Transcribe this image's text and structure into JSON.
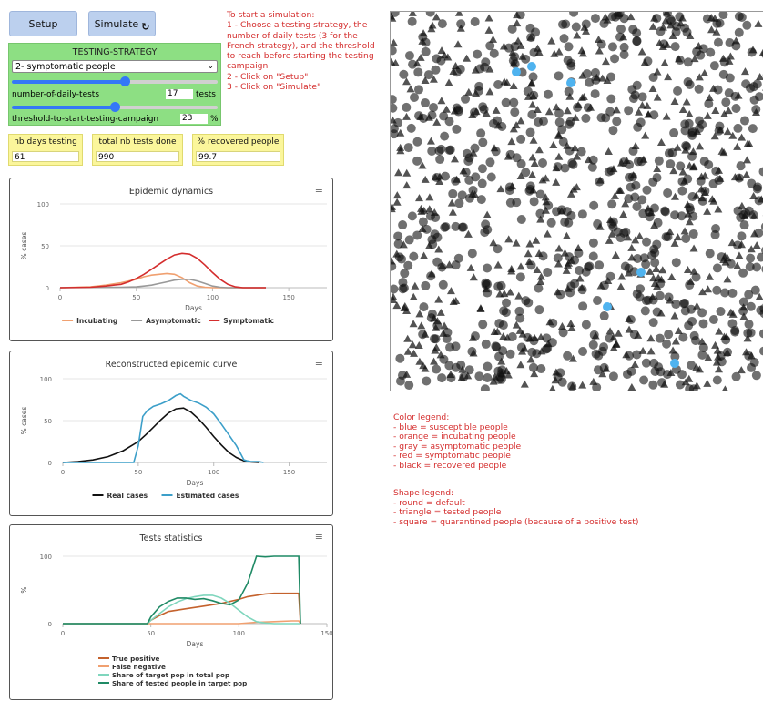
{
  "buttons": {
    "setup": "Setup",
    "simulate": "Simulate"
  },
  "testing": {
    "header": "TESTING-STRATEGY",
    "selected": "2- symptomatic people",
    "daily_tests_label": "number-of-daily-tests",
    "daily_tests_value": "17",
    "daily_tests_unit": "tests",
    "daily_tests_level": 0.55,
    "threshold_label": "threshold-to-start-testing-campaign",
    "threshold_value": "23",
    "threshold_unit": "%",
    "threshold_level": 0.5
  },
  "monitors": [
    {
      "label": "nb days testing",
      "value": "61"
    },
    {
      "label": "total nb tests done",
      "value": "990"
    },
    {
      "label": "% recovered people",
      "value": "99.7"
    }
  ],
  "instructions": "To start a simulation:\n1 - Choose a testing strategy, the number of daily tests (3 for the French strategy), and the threshold to reach before starting the testing campaign\n2 - Click on \"Setup\"\n3 - Click on \"Simulate\"",
  "color_legend": "Color legend:\n- blue = susceptible people\n- orange = incubating people\n- gray = asymptomatic people\n- red = symptomatic people\n- black = recovered people",
  "shape_legend": "Shape legend:\n- round = default\n- triangle = tested people\n- square = quarantined people (because of a positive test)",
  "colors": {
    "red": "#d42d2d",
    "green": "#8ddf83",
    "yellow": "#fbf69b",
    "button": "#bcd0ee"
  },
  "icons": {
    "simulate": "refresh-icon",
    "chart_menu": "hamburger-icon"
  },
  "chart_data": [
    {
      "type": "line",
      "title": "Epidemic dynamics",
      "xlabel": "Days",
      "ylabel": "% cases",
      "xlim": [
        0,
        175
      ],
      "ylim": [
        0,
        100
      ],
      "xticks": [
        0,
        50,
        100,
        150
      ],
      "yticks": [
        0,
        50,
        100
      ],
      "legend_position": "bottom",
      "series": [
        {
          "name": "Incubating",
          "color": "#f0a070",
          "x": [
            0,
            20,
            30,
            40,
            50,
            55,
            60,
            65,
            70,
            75,
            80,
            85,
            90,
            95,
            100,
            135
          ],
          "y": [
            0,
            1,
            3,
            6,
            10,
            13,
            15,
            16,
            17,
            16,
            12,
            6,
            2,
            0.5,
            0,
            0
          ]
        },
        {
          "name": "Asymptomatic",
          "color": "#999999",
          "x": [
            0,
            40,
            50,
            55,
            60,
            65,
            70,
            75,
            80,
            85,
            90,
            95,
            100,
            105,
            110,
            135
          ],
          "y": [
            0,
            0.5,
            1,
            2,
            3,
            5,
            7,
            9,
            10,
            10,
            8,
            5,
            2,
            0.5,
            0,
            0
          ]
        },
        {
          "name": "Symptomatic",
          "color": "#d42d2d",
          "x": [
            0,
            20,
            30,
            40,
            45,
            50,
            55,
            60,
            65,
            70,
            75,
            80,
            85,
            90,
            95,
            100,
            105,
            110,
            115,
            120,
            135
          ],
          "y": [
            0,
            0.5,
            2,
            4,
            7,
            11,
            16,
            22,
            28,
            34,
            39,
            41,
            40,
            35,
            27,
            18,
            10,
            4,
            1,
            0,
            0
          ]
        }
      ]
    },
    {
      "type": "line",
      "title": "Reconstructed epidemic curve",
      "xlabel": "Days",
      "ylabel": "% cases",
      "xlim": [
        0,
        175
      ],
      "ylim": [
        0,
        100
      ],
      "xticks": [
        0,
        50,
        100,
        150
      ],
      "yticks": [
        0,
        50,
        100
      ],
      "legend_position": "bottom",
      "series": [
        {
          "name": "Real cases",
          "color": "#111111",
          "x": [
            0,
            10,
            20,
            30,
            40,
            50,
            55,
            60,
            65,
            70,
            75,
            80,
            85,
            90,
            95,
            100,
            105,
            110,
            115,
            120,
            125,
            130
          ],
          "y": [
            0,
            1,
            3,
            7,
            14,
            25,
            33,
            42,
            51,
            59,
            64,
            65,
            60,
            52,
            42,
            31,
            21,
            12,
            6,
            2,
            0.5,
            0
          ]
        },
        {
          "name": "Estimated cases",
          "color": "#3c9fc9",
          "x": [
            0,
            47,
            50,
            53,
            56,
            60,
            65,
            70,
            75,
            78,
            80,
            85,
            90,
            95,
            100,
            105,
            110,
            115,
            118,
            120,
            122,
            125,
            130,
            133
          ],
          "y": [
            0,
            0,
            20,
            55,
            62,
            67,
            70,
            74,
            80,
            82,
            79,
            74,
            71,
            66,
            58,
            46,
            33,
            20,
            10,
            3,
            2,
            1,
            1,
            0
          ]
        }
      ]
    },
    {
      "type": "line",
      "title": "Tests statistics",
      "xlabel": "Days",
      "ylabel": "%",
      "xlim": [
        0,
        150
      ],
      "ylim": [
        0,
        100
      ],
      "xticks": [
        0,
        50,
        100,
        150
      ],
      "yticks": [
        0,
        100
      ],
      "legend_position": "bottom",
      "series": [
        {
          "name": "True positive",
          "color": "#c4622d",
          "x": [
            0,
            48,
            50,
            55,
            60,
            70,
            80,
            90,
            100,
            105,
            110,
            115,
            120,
            130,
            134,
            135
          ],
          "y": [
            0,
            0,
            5,
            12,
            18,
            22,
            26,
            30,
            36,
            40,
            42,
            44,
            45,
            45,
            45,
            0
          ]
        },
        {
          "name": "False negative",
          "color": "#f0a070",
          "x": [
            0,
            100,
            110,
            120,
            130,
            134,
            135
          ],
          "y": [
            0,
            0,
            2,
            3,
            4,
            4,
            0
          ]
        },
        {
          "name": "Share of target pop in total pop",
          "color": "#7fd6bd",
          "x": [
            0,
            48,
            50,
            55,
            60,
            65,
            70,
            75,
            80,
            85,
            90,
            95,
            100,
            105,
            110,
            115,
            120,
            135
          ],
          "y": [
            0,
            0,
            5,
            15,
            25,
            32,
            37,
            40,
            42,
            42,
            38,
            30,
            20,
            10,
            3,
            1,
            0,
            0
          ]
        },
        {
          "name": "Share of tested people in target pop",
          "color": "#1f8a65",
          "x": [
            0,
            48,
            50,
            55,
            60,
            65,
            70,
            75,
            80,
            85,
            90,
            95,
            100,
            105,
            110,
            115,
            120,
            125,
            130,
            134,
            135
          ],
          "y": [
            0,
            0,
            10,
            25,
            33,
            38,
            38,
            36,
            37,
            34,
            30,
            28,
            35,
            60,
            100,
            99,
            100,
            100,
            100,
            100,
            0
          ]
        }
      ]
    }
  ]
}
